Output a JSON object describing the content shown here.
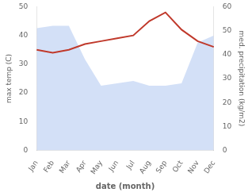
{
  "chart_data": {
    "type": "line",
    "xlabel": "date (month)",
    "ylabel": "max temp (C)",
    "y2label": "med. precipitation (kg/m2)",
    "categories": [
      "Jan",
      "Feb",
      "Mar",
      "Apr",
      "May",
      "Jun",
      "Jul",
      "Aug",
      "Sep",
      "Oct",
      "Nov",
      "Dec"
    ],
    "series": [
      {
        "type": "area",
        "axis": "y2",
        "color": "#aec6f0",
        "values": [
          51,
          52,
          52,
          38,
          27,
          28,
          29,
          27,
          27,
          28,
          45,
          48
        ]
      },
      {
        "type": "line",
        "color": "#c0392b",
        "values": [
          35,
          34,
          35,
          37,
          38,
          39,
          40,
          45,
          48,
          42,
          38,
          36
        ]
      }
    ],
    "ylim": [
      0,
      50
    ],
    "yticks": [
      0,
      10,
      20,
      30,
      40,
      50
    ],
    "y2lim": [
      0,
      60
    ],
    "y2ticks": [
      0,
      10,
      20,
      30,
      40,
      50,
      60
    ],
    "grid": false
  }
}
